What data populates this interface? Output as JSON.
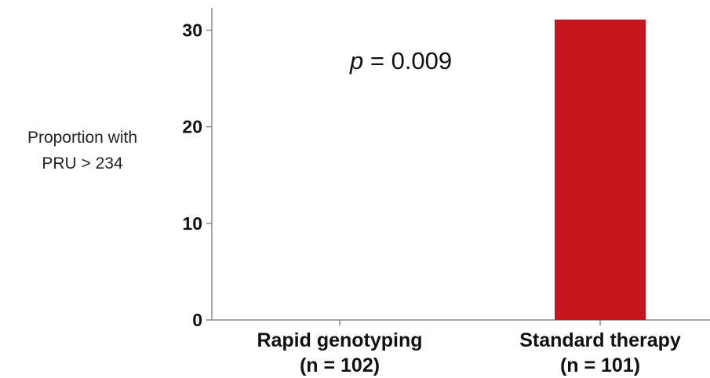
{
  "chart_data": {
    "type": "bar",
    "ylabel_lines": [
      "Proportion with",
      "PRU > 234"
    ],
    "categories": [
      {
        "name": "Rapid genotyping",
        "n_label": "(n = 102)"
      },
      {
        "name": "Standard therapy",
        "n_label": "(n = 101)"
      }
    ],
    "values": [
      0,
      31.1
    ],
    "yticks": [
      0,
      10,
      20,
      30
    ],
    "ylim": [
      0,
      31.5
    ],
    "annotation": {
      "italic": "p",
      "rest": " = 0.009"
    },
    "bar_color": "#c4161c",
    "grid": false
  }
}
